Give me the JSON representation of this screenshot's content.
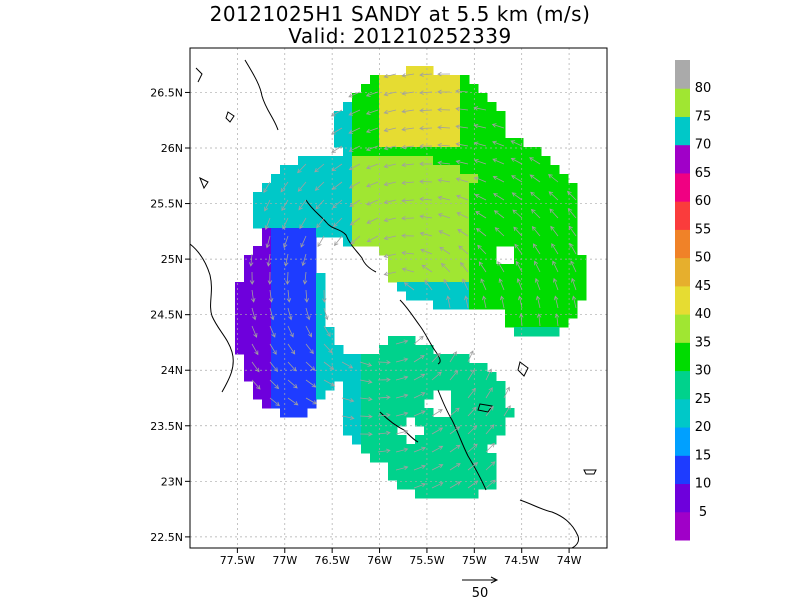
{
  "title_line1": "20121025H1 SANDY at 5.5 km (m/s)",
  "title_line2": "Valid: 201210252339",
  "lat_labels": [
    {
      "lat": 26.5,
      "label": "26.5N"
    },
    {
      "lat": 26.0,
      "label": "26N"
    },
    {
      "lat": 25.5,
      "label": "25.5N"
    },
    {
      "lat": 25.0,
      "label": "25N"
    },
    {
      "lat": 24.5,
      "label": "24.5N"
    },
    {
      "lat": 24.0,
      "label": "24N"
    },
    {
      "lat": 23.5,
      "label": "23.5N"
    },
    {
      "lat": 23.0,
      "label": "23N"
    },
    {
      "lat": 22.5,
      "label": "22.5N"
    }
  ],
  "lon_labels": [
    {
      "lon": -77.5,
      "label": "77.5W"
    },
    {
      "lon": -77.0,
      "label": "77W"
    },
    {
      "lon": -76.5,
      "label": "76.5W"
    },
    {
      "lon": -76.0,
      "label": "76W"
    },
    {
      "lon": -75.5,
      "label": "75.5W"
    },
    {
      "lon": -75.0,
      "label": "75W"
    },
    {
      "lon": -74.5,
      "label": "74.5W"
    },
    {
      "lon": -74.0,
      "label": "74W"
    }
  ],
  "map_extent": {
    "lon_min": -78.0,
    "lon_max": -73.6,
    "lat_min": 22.4,
    "lat_max": 26.9
  },
  "colorbar": {
    "labels": [
      "5",
      "10",
      "15",
      "20",
      "25",
      "30",
      "35",
      "40",
      "45",
      "50",
      "55",
      "60",
      "65",
      "70",
      "75",
      "80"
    ],
    "colors": [
      "#a000c8",
      "#6e00dc",
      "#1e3cff",
      "#00a0ff",
      "#00c8c8",
      "#00d28c",
      "#00dc00",
      "#a0e632",
      "#e6dc32",
      "#e6af2d",
      "#f08228",
      "#fa3c3c",
      "#f00082",
      "#a000c8",
      "#00c8c8",
      "#a0e632",
      "#aaaaaa"
    ]
  },
  "wind_scale": {
    "label": "50"
  },
  "line_colors": {
    "coast": "#000000",
    "vectors": "#a0a0a0",
    "grid": "#aaaaaa"
  }
}
